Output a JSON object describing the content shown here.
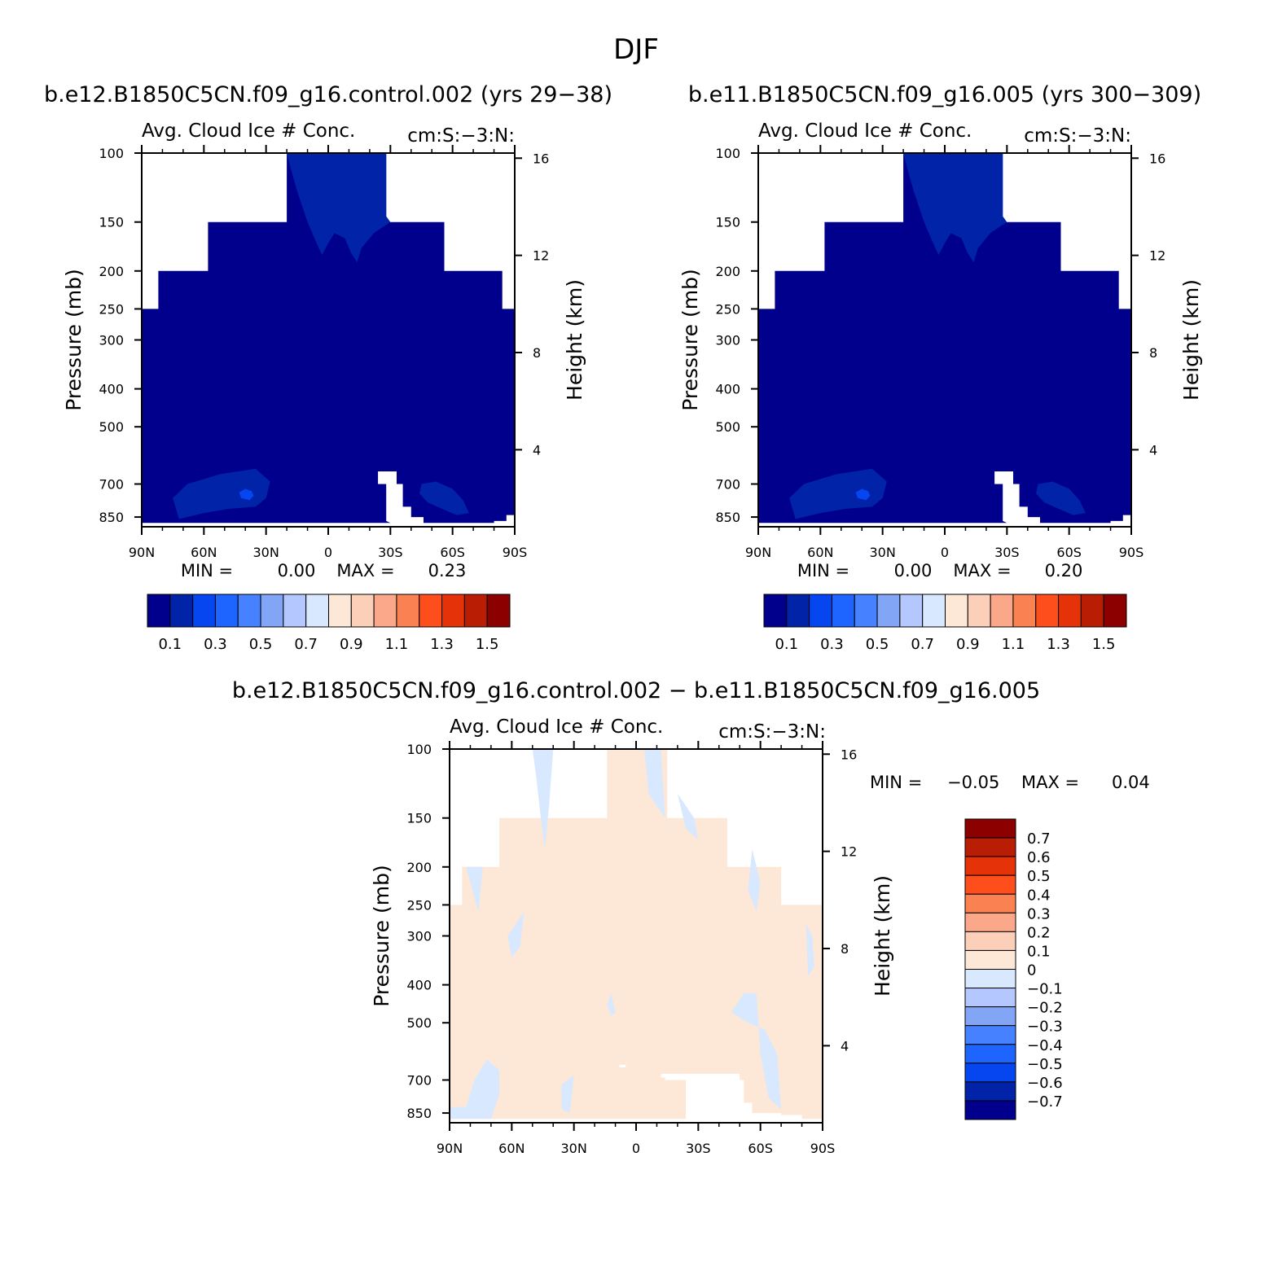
{
  "page_title": "DJF",
  "colors": {
    "blue_levels": [
      "#00008c",
      "#0023a8",
      "#0546f0",
      "#1e64ff",
      "#4682ff",
      "#82a5f5",
      "#b4c8ff",
      "#d7e8ff"
    ],
    "red_levels": [
      "#fde8d7",
      "#fcd0b8",
      "#fba88a",
      "#fa8252",
      "#fe4e1c",
      "#e63209",
      "#b91e04",
      "#8c0000"
    ],
    "missing": "#ffffff"
  },
  "chart_data": [
    {
      "type": "heatmap",
      "panel": "top-left",
      "title": "b.e12.B1850C5CN.f09_g16.control.002 (yrs 29-38)",
      "subtitle_left": "Avg. Cloud Ice # Conc.",
      "subtitle_right": "cm:S:-3:N:",
      "xlabel": "",
      "ylabel": "Pressure (mb)",
      "ylabel_right": "Height (km)",
      "x_ticks": [
        "90N",
        "60N",
        "30N",
        "0",
        "30S",
        "60S",
        "90S"
      ],
      "y_ticks": [
        "100",
        "150",
        "200",
        "250",
        "300",
        "400",
        "500",
        "700",
        "850"
      ],
      "y_right_ticks": [
        "16",
        "12",
        "8",
        "4"
      ],
      "y_scale": "log",
      "min_label": "MIN =",
      "min": "0.00",
      "max_label": "MAX =",
      "max": "0.23",
      "colorbar_levels": [
        0,
        0.1,
        0.2,
        0.3,
        0.4,
        0.5,
        0.6,
        0.7,
        0.8,
        0.9,
        1.0,
        1.1,
        1.2,
        1.3,
        1.4,
        1.5
      ],
      "colorbar_labels": [
        "0.1",
        "0.3",
        "0.5",
        "0.7",
        "0.9",
        "1.1",
        "1.3",
        "1.5"
      ],
      "colorbar_orientation": "horizontal"
    },
    {
      "type": "heatmap",
      "panel": "top-right",
      "title": "b.e11.B1850C5CN.f09_g16.005 (yrs 300-309)",
      "subtitle_left": "Avg. Cloud Ice # Conc.",
      "subtitle_right": "cm:S:-3:N:",
      "xlabel": "",
      "ylabel": "Pressure (mb)",
      "ylabel_right": "Height (km)",
      "x_ticks": [
        "90N",
        "60N",
        "30N",
        "0",
        "30S",
        "60S",
        "90S"
      ],
      "y_ticks": [
        "100",
        "150",
        "200",
        "250",
        "300",
        "400",
        "500",
        "700",
        "850"
      ],
      "y_right_ticks": [
        "16",
        "12",
        "8",
        "4"
      ],
      "y_scale": "log",
      "min_label": "MIN =",
      "min": "0.00",
      "max_label": "MAX =",
      "max": "0.20",
      "colorbar_levels": [
        0,
        0.1,
        0.2,
        0.3,
        0.4,
        0.5,
        0.6,
        0.7,
        0.8,
        0.9,
        1.0,
        1.1,
        1.2,
        1.3,
        1.4,
        1.5
      ],
      "colorbar_labels": [
        "0.1",
        "0.3",
        "0.5",
        "0.7",
        "0.9",
        "1.1",
        "1.3",
        "1.5"
      ],
      "colorbar_orientation": "horizontal"
    },
    {
      "type": "heatmap",
      "panel": "bottom",
      "title": "b.e12.B1850C5CN.f09_g16.control.002 - b.e11.B1850C5CN.f09_g16.005",
      "subtitle_left": "Avg. Cloud Ice # Conc.",
      "subtitle_right": "cm:S:-3:N:",
      "xlabel": "",
      "ylabel": "Pressure (mb)",
      "ylabel_right": "Height (km)",
      "x_ticks": [
        "90N",
        "60N",
        "30N",
        "0",
        "30S",
        "60S",
        "90S"
      ],
      "y_ticks": [
        "100",
        "150",
        "200",
        "250",
        "300",
        "400",
        "500",
        "700",
        "850"
      ],
      "y_right_ticks": [
        "16",
        "12",
        "8",
        "4"
      ],
      "y_scale": "log",
      "min_label": "MIN =",
      "min": "-0.05",
      "max_label": "MAX =",
      "max": "0.04",
      "colorbar_levels": [
        -0.7,
        -0.6,
        -0.5,
        -0.4,
        -0.3,
        -0.2,
        -0.1,
        0,
        0.1,
        0.2,
        0.3,
        0.4,
        0.5,
        0.6,
        0.7
      ],
      "colorbar_labels": [
        "0.7",
        "0.6",
        "0.5",
        "0.4",
        "0.3",
        "0.2",
        "0.1",
        "0",
        "-0.1",
        "-0.2",
        "-0.3",
        "-0.4",
        "-0.5",
        "-0.6",
        "-0.7"
      ],
      "colorbar_orientation": "vertical"
    }
  ]
}
